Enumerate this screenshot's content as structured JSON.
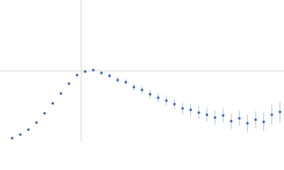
{
  "chart_data": {
    "type": "scatter",
    "x": [
      0.15,
      0.25,
      0.35,
      0.45,
      0.55,
      0.65,
      0.75,
      0.85,
      0.95,
      1.05,
      1.15,
      1.25,
      1.35,
      1.45,
      1.55,
      1.65,
      1.75,
      1.85,
      1.95,
      2.05,
      2.15,
      2.25,
      2.35,
      2.45,
      2.55,
      2.65,
      2.75,
      2.85,
      2.95,
      3.05,
      3.15,
      3.25,
      3.35,
      3.45
    ],
    "series": [
      {
        "color": "#3a66b8",
        "error_color": "#a9bde6",
        "values": [
          0.05,
          0.1,
          0.17,
          0.27,
          0.4,
          0.54,
          0.68,
          0.82,
          0.94,
          0.99,
          1.01,
          0.97,
          0.93,
          0.87,
          0.84,
          0.77,
          0.73,
          0.67,
          0.62,
          0.58,
          0.53,
          0.47,
          0.45,
          0.41,
          0.38,
          0.34,
          0.37,
          0.29,
          0.33,
          0.26,
          0.31,
          0.28,
          0.38,
          0.42
        ],
        "errors": [
          0.005,
          0.005,
          0.006,
          0.007,
          0.008,
          0.01,
          0.012,
          0.015,
          0.018,
          0.02,
          0.025,
          0.03,
          0.035,
          0.04,
          0.045,
          0.05,
          0.055,
          0.06,
          0.065,
          0.07,
          0.075,
          0.08,
          0.085,
          0.09,
          0.095,
          0.1,
          0.1,
          0.11,
          0.11,
          0.12,
          0.12,
          0.13,
          0.14,
          0.15
        ]
      }
    ],
    "xlim": [
      0,
      3.5
    ],
    "ylim": [
      0,
      2
    ],
    "xticks": [
      1
    ],
    "yticks": [
      1
    ],
    "grid": true
  }
}
